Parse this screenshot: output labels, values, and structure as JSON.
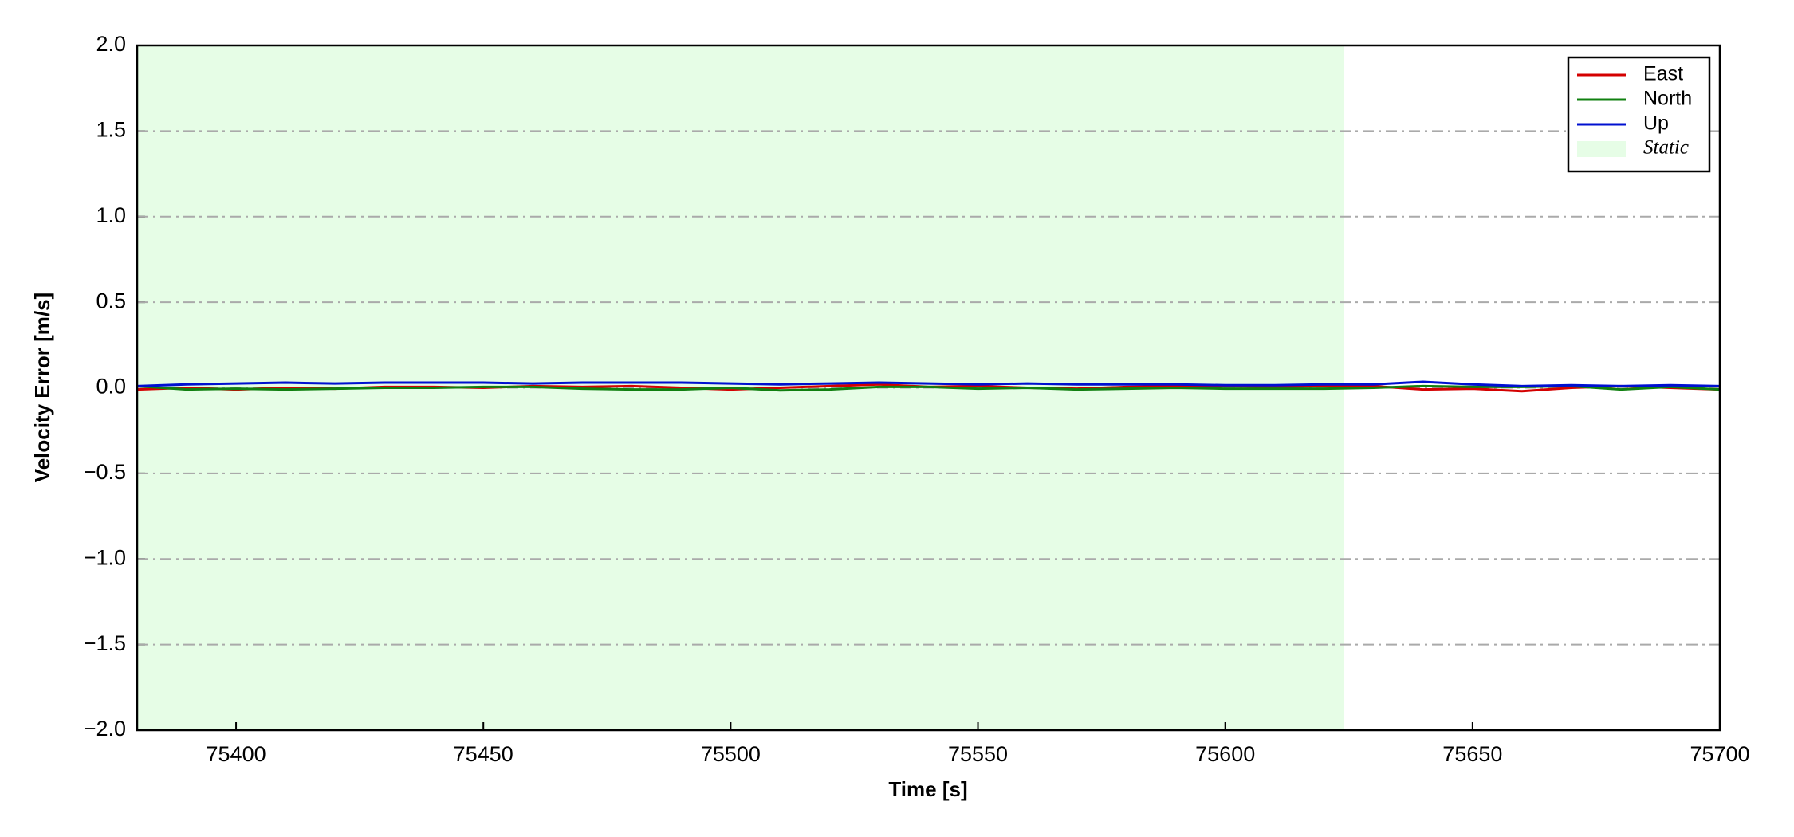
{
  "chart_data": {
    "type": "line",
    "xlabel": "Time [s]",
    "ylabel": "Velocity Error [m/s]",
    "x": [
      75380,
      75390,
      75400,
      75410,
      75420,
      75430,
      75440,
      75450,
      75460,
      75470,
      75480,
      75490,
      75500,
      75510,
      75520,
      75530,
      75540,
      75550,
      75560,
      75570,
      75580,
      75590,
      75600,
      75610,
      75620,
      75630,
      75640,
      75650,
      75660,
      75670,
      75680,
      75690,
      75700
    ],
    "series": [
      {
        "name": "East",
        "color": "#d40000",
        "values": [
          -0.01,
          0.0,
          -0.01,
          0.0,
          -0.005,
          0.005,
          0.005,
          0.0,
          0.01,
          0.005,
          0.01,
          0.0,
          -0.01,
          0.0,
          0.01,
          0.02,
          0.005,
          0.01,
          0.0,
          -0.005,
          0.005,
          0.01,
          0.01,
          0.005,
          0.01,
          0.01,
          -0.01,
          -0.005,
          -0.02,
          0.0,
          0.01,
          0.0,
          -0.01
        ]
      },
      {
        "name": "North",
        "color": "#108010",
        "values": [
          0.01,
          -0.01,
          -0.005,
          -0.01,
          -0.005,
          0.0,
          0.0,
          0.005,
          0.005,
          -0.005,
          -0.01,
          -0.01,
          0.0,
          -0.015,
          -0.01,
          0.005,
          0.005,
          -0.005,
          0.0,
          -0.01,
          -0.005,
          0.0,
          -0.005,
          -0.005,
          -0.005,
          0.0,
          0.01,
          0.005,
          0.005,
          0.01,
          -0.01,
          0.005,
          -0.01
        ]
      },
      {
        "name": "Up",
        "color": "#0010d0",
        "values": [
          0.01,
          0.02,
          0.025,
          0.03,
          0.025,
          0.03,
          0.03,
          0.03,
          0.025,
          0.03,
          0.03,
          0.03,
          0.025,
          0.02,
          0.025,
          0.03,
          0.025,
          0.02,
          0.025,
          0.02,
          0.02,
          0.02,
          0.015,
          0.015,
          0.02,
          0.02,
          0.035,
          0.02,
          0.01,
          0.015,
          0.01,
          0.015,
          0.01
        ]
      }
    ],
    "shaded_regions": [
      {
        "name": "Static",
        "start": 75380,
        "end": 75624,
        "color": "#e6fde6"
      }
    ],
    "xlim": [
      75380,
      75700
    ],
    "xticks": [
      75400,
      75450,
      75500,
      75550,
      75600,
      75650,
      75700
    ],
    "ylim": [
      -2,
      2
    ],
    "yticks": [
      {
        "value": -2,
        "label": "−2.0"
      },
      {
        "value": -1.5,
        "label": "−1.5"
      },
      {
        "value": -1,
        "label": "−1.0"
      },
      {
        "value": -0.5,
        "label": "−0.5"
      },
      {
        "value": 0,
        "label": "0.0"
      },
      {
        "value": 0.5,
        "label": "0.5"
      },
      {
        "value": 1,
        "label": "1.0"
      },
      {
        "value": 1.5,
        "label": "1.5"
      },
      {
        "value": 2,
        "label": "2.0"
      }
    ],
    "grid": true,
    "legend": "upper right"
  }
}
